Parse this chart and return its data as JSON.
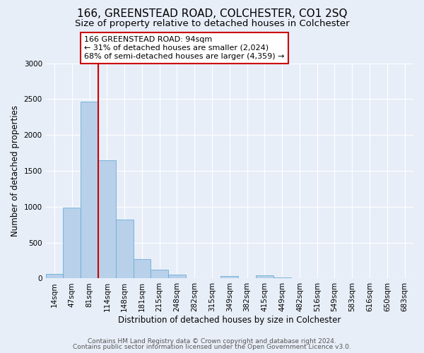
{
  "title": "166, GREENSTEAD ROAD, COLCHESTER, CO1 2SQ",
  "subtitle": "Size of property relative to detached houses in Colchester",
  "xlabel": "Distribution of detached houses by size in Colchester",
  "ylabel": "Number of detached properties",
  "bin_labels": [
    "14sqm",
    "47sqm",
    "81sqm",
    "114sqm",
    "148sqm",
    "181sqm",
    "215sqm",
    "248sqm",
    "282sqm",
    "315sqm",
    "349sqm",
    "382sqm",
    "415sqm",
    "449sqm",
    "482sqm",
    "516sqm",
    "549sqm",
    "583sqm",
    "616sqm",
    "650sqm",
    "683sqm"
  ],
  "bar_heights": [
    60,
    990,
    2460,
    1650,
    820,
    270,
    120,
    50,
    0,
    0,
    30,
    0,
    40,
    15,
    0,
    0,
    0,
    0,
    0,
    0,
    0
  ],
  "bar_color": "#b8d0ea",
  "bar_edge_color": "#6aaed6",
  "annotation_text": "166 GREENSTEAD ROAD: 94sqm\n← 31% of detached houses are smaller (2,024)\n68% of semi-detached houses are larger (4,359) →",
  "annotation_box_color": "#ffffff",
  "annotation_box_edge_color": "#cc0000",
  "red_line_color": "#cc0000",
  "ylim": [
    0,
    3000
  ],
  "yticks": [
    0,
    500,
    1000,
    1500,
    2000,
    2500,
    3000
  ],
  "footer_line1": "Contains HM Land Registry data © Crown copyright and database right 2024.",
  "footer_line2": "Contains public sector information licensed under the Open Government Licence v3.0.",
  "bg_color": "#e8eef8",
  "grid_color": "#ffffff",
  "title_fontsize": 11,
  "subtitle_fontsize": 9.5,
  "axis_label_fontsize": 8.5,
  "tick_fontsize": 7.5,
  "annotation_fontsize": 8,
  "footer_fontsize": 6.5
}
